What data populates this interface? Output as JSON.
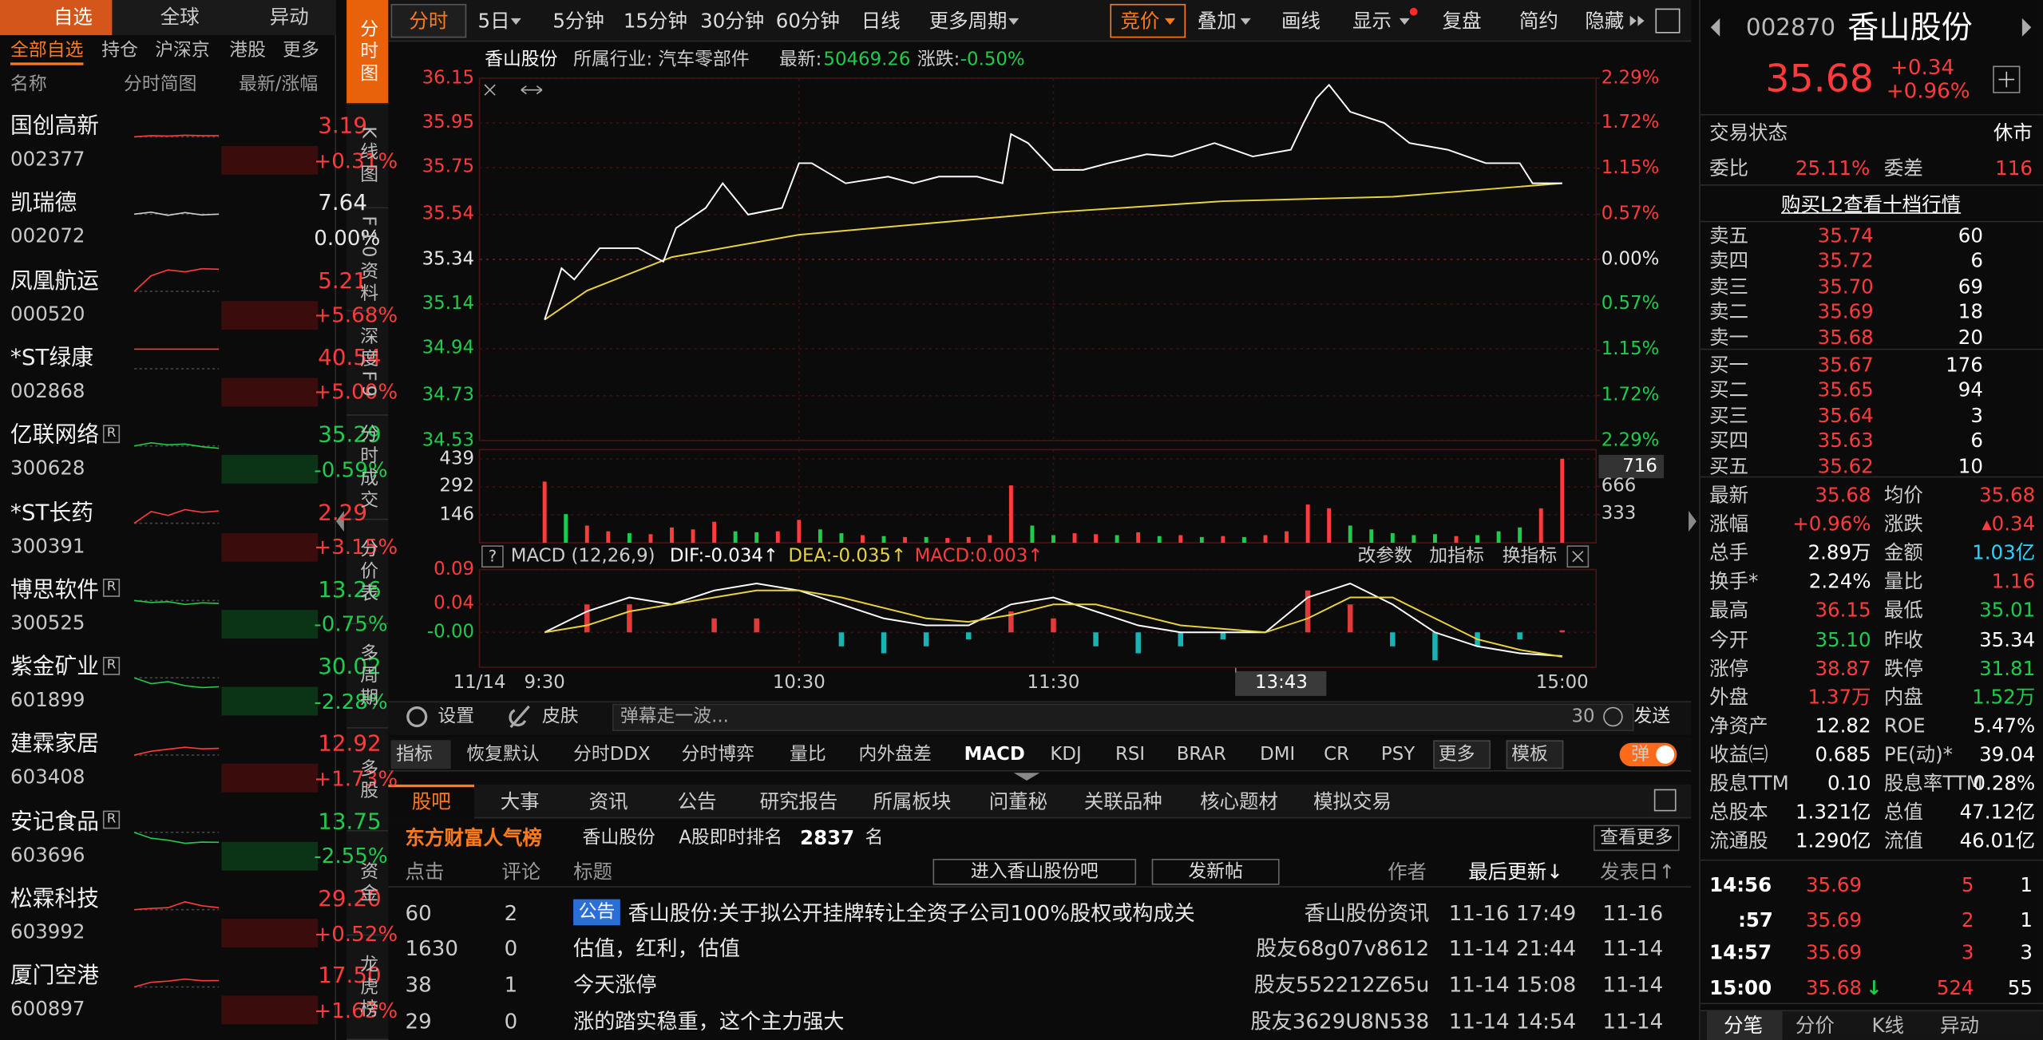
{
  "watchlist": {
    "tabs": [
      "自选",
      "全球",
      "异动"
    ],
    "subtabs": [
      "全部自选",
      "持仓",
      "沪深京",
      "港股",
      "更多"
    ],
    "columns": [
      "名称",
      "分时简图",
      "最新/涨幅"
    ],
    "stocks": [
      {
        "name": "国创高新",
        "code": "002377",
        "price": "3.19",
        "change": "+0.31%",
        "sparkline": [
          0,
          0.3,
          0.2,
          0.4,
          0.3,
          0.31
        ]
      },
      {
        "name": "凯瑞德",
        "code": "002072",
        "price": "7.64",
        "change": "0.00%",
        "sparkline": [
          0,
          0.5,
          -0.3,
          0.4,
          -0.2,
          0
        ]
      },
      {
        "name": "凤凰航运",
        "code": "000520",
        "price": "5.21",
        "change": "+5.68%",
        "sparkline": [
          0,
          4,
          5.5,
          5,
          5.8,
          5.68
        ]
      },
      {
        "name": "*ST绿康",
        "code": "002868",
        "price": "40.54",
        "change": "+5.00%",
        "sparkline": [
          5,
          5,
          5,
          5,
          5,
          5
        ]
      },
      {
        "name": "亿联网络",
        "badge": "R",
        "code": "300628",
        "price": "35.29",
        "change": "-0.59%",
        "sparkline": [
          0,
          0.8,
          0.3,
          0.5,
          -0.2,
          -0.59
        ]
      },
      {
        "name": "*ST长药",
        "code": "300391",
        "price": "2.29",
        "change": "+3.15%",
        "sparkline": [
          0,
          3,
          2,
          3.5,
          2.8,
          3.15
        ]
      },
      {
        "name": "博思软件",
        "badge": "R",
        "code": "300525",
        "price": "13.26",
        "change": "-0.75%",
        "sparkline": [
          0,
          -0.5,
          -0.3,
          -1,
          -0.6,
          -0.75
        ]
      },
      {
        "name": "紫金矿业",
        "badge": "R",
        "code": "601899",
        "price": "30.02",
        "change": "-2.28%",
        "sparkline": [
          0,
          -1.5,
          -1,
          -2,
          -2.5,
          -2.28
        ]
      },
      {
        "name": "建霖家居",
        "code": "603408",
        "price": "12.92",
        "change": "+1.73%",
        "sparkline": [
          0,
          1,
          1.5,
          2,
          1.6,
          1.73
        ]
      },
      {
        "name": "安记食品",
        "badge": "R",
        "code": "603696",
        "price": "13.75",
        "change": "-2.55%",
        "sparkline": [
          0,
          -1.5,
          -2,
          -2.8,
          -2.5,
          -2.55
        ]
      },
      {
        "name": "松霖科技",
        "code": "603992",
        "price": "29.20",
        "change": "+0.52%",
        "sparkline": [
          0,
          0.3,
          0.5,
          2,
          1,
          0.52
        ]
      },
      {
        "name": "厦门空港",
        "code": "600897",
        "price": "17.50",
        "change": "+1.63%",
        "sparkline": [
          0,
          1.2,
          1.5,
          2,
          1.6,
          1.63
        ]
      }
    ]
  },
  "side_tabs": [
    "分时图",
    "K线图",
    "F10资料",
    "深度F9",
    "分时成交",
    "分价表",
    "多周期",
    "多股",
    "资金",
    "龙虎榜"
  ],
  "toolbar": {
    "periods": [
      "分时",
      "5日",
      "5分钟",
      "15分钟",
      "30分钟",
      "60分钟",
      "日线",
      "更多周期"
    ],
    "tools": [
      "竞价",
      "叠加",
      "画线",
      "显示",
      "复盘",
      "简约",
      "隐藏"
    ]
  },
  "info": {
    "name": "香山股份",
    "industry": "所属行业: 汽车零部件",
    "latest_label": "最新:",
    "latest": "50469.26",
    "change_label": "涨跌:",
    "change": "-0.50%"
  },
  "chart_data": {
    "type": "line",
    "xlim": [
      0,
      240
    ],
    "xticks": [
      {
        "value": 0,
        "label": "9:30"
      },
      {
        "value": 60,
        "label": "10:30"
      },
      {
        "value": 120,
        "label": "11:30"
      },
      {
        "value": 240,
        "label": "15:00"
      }
    ],
    "date_label": "11/14",
    "cursor": {
      "value": 163,
      "label": "13:43"
    },
    "ylim": [
      34.53,
      36.15
    ],
    "yticks": [
      36.15,
      35.95,
      35.75,
      35.54,
      35.34,
      35.14,
      34.94,
      34.73,
      34.53
    ],
    "y2lim": [
      -2.29,
      2.29
    ],
    "y2ticks": [
      {
        "value": 2.29,
        "label": "2.29%"
      },
      {
        "value": 1.72,
        "label": "1.72%"
      },
      {
        "value": 1.15,
        "label": "1.15%"
      },
      {
        "value": 0.57,
        "label": "0.57%"
      },
      {
        "value": 0,
        "label": "0.00%"
      },
      {
        "value": -0.57,
        "label": "0.57%"
      },
      {
        "value": -1.15,
        "label": "1.15%"
      },
      {
        "value": -1.72,
        "label": "1.72%"
      },
      {
        "value": -2.29,
        "label": "2.29%"
      }
    ],
    "grid": true,
    "price": {
      "color": "#ffffff",
      "x": [
        0,
        4,
        7,
        13,
        22,
        28,
        31,
        38,
        42,
        48,
        56,
        60,
        63,
        71,
        81,
        87,
        93,
        102,
        108,
        110,
        114,
        120,
        127,
        133,
        142,
        148,
        158,
        167,
        176,
        179,
        182,
        185,
        190,
        198,
        204,
        213,
        222,
        230,
        233,
        240
      ],
      "values": [
        35.07,
        35.3,
        35.25,
        35.39,
        35.39,
        35.33,
        35.48,
        35.57,
        35.68,
        35.54,
        35.57,
        35.77,
        35.77,
        35.68,
        35.71,
        35.68,
        35.71,
        35.71,
        35.68,
        35.9,
        35.86,
        35.74,
        35.74,
        35.77,
        35.81,
        35.8,
        35.86,
        35.8,
        35.83,
        35.95,
        36.06,
        36.12,
        36.0,
        35.95,
        35.86,
        35.83,
        35.77,
        35.77,
        35.68,
        35.68
      ]
    },
    "average": {
      "color": "#e8d33a",
      "x": [
        0,
        10,
        30,
        60,
        90,
        120,
        160,
        200,
        240
      ],
      "values": [
        35.07,
        35.2,
        35.35,
        35.45,
        35.5,
        35.55,
        35.6,
        35.62,
        35.68
      ]
    },
    "volume": {
      "ylim": [
        0,
        487
      ],
      "yticks": [
        146,
        292,
        439
      ],
      "y2lim": [
        0,
        1100
      ],
      "y2ticks": [
        333,
        666
      ],
      "cursor_value": 716,
      "series": [
        {
          "color": "#ff3b3b",
          "x": [
            0,
            10,
            15,
            25,
            30,
            35,
            40,
            55,
            60,
            75,
            85,
            95,
            100,
            105,
            110,
            125,
            130,
            140,
            150,
            160,
            170,
            175,
            180,
            185,
            215,
            235,
            240
          ],
          "values": [
            320,
            90,
            60,
            45,
            80,
            70,
            110,
            60,
            120,
            40,
            30,
            25,
            30,
            40,
            300,
            50,
            45,
            55,
            40,
            35,
            40,
            60,
            200,
            180,
            35,
            180,
            439
          ]
        },
        {
          "color": "#1ecb4a",
          "x": [
            5,
            20,
            45,
            50,
            65,
            70,
            80,
            90,
            115,
            120,
            135,
            145,
            155,
            165,
            190,
            195,
            200,
            205,
            210,
            220,
            225,
            230
          ],
          "values": [
            150,
            50,
            60,
            55,
            70,
            50,
            35,
            30,
            90,
            40,
            40,
            35,
            30,
            30,
            90,
            70,
            50,
            40,
            45,
            40,
            60,
            80
          ]
        }
      ]
    },
    "macd": {
      "label": "MACD (12,26,9)",
      "dif_label": "DIF:-0.034↑",
      "dea_label": "DEA:-0.035↑",
      "macd_label": "MACD:0.003↑",
      "buttons": [
        "改参数",
        "加指标",
        "换指标"
      ],
      "ylim": [
        -0.05,
        0.09
      ],
      "yticks": [
        0.09,
        0.04,
        {
          "value": 0,
          "label": "-0.00"
        }
      ],
      "up_color": "#e03a3a",
      "down_color": "#19b3b3",
      "x": [
        0,
        10,
        20,
        30,
        40,
        50,
        60,
        70,
        80,
        90,
        100,
        110,
        120,
        130,
        140,
        150,
        160,
        170,
        180,
        190,
        200,
        210,
        220,
        230,
        240
      ],
      "dif": {
        "color": "#ffffff",
        "values": [
          0,
          0.03,
          0.05,
          0.04,
          0.06,
          0.07,
          0.06,
          0.04,
          0.02,
          0.01,
          0.01,
          0.04,
          0.05,
          0.03,
          0.01,
          0,
          0,
          0,
          0.05,
          0.07,
          0.04,
          0,
          -0.02,
          -0.03,
          -0.034
        ]
      },
      "dea": {
        "color": "#e8d33a",
        "values": [
          0,
          0.01,
          0.03,
          0.04,
          0.05,
          0.06,
          0.06,
          0.05,
          0.035,
          0.02,
          0.015,
          0.025,
          0.04,
          0.04,
          0.025,
          0.01,
          0.005,
          0,
          0.02,
          0.05,
          0.05,
          0.02,
          -0.01,
          -0.025,
          -0.035
        ]
      },
      "values": [
        0,
        0.04,
        0.04,
        0,
        0.02,
        0.02,
        0,
        -0.02,
        -0.03,
        -0.02,
        -0.01,
        0.03,
        0.02,
        -0.02,
        -0.03,
        -0.02,
        -0.01,
        0,
        0.06,
        0.04,
        -0.02,
        -0.04,
        -0.02,
        -0.01,
        0.003
      ]
    }
  },
  "bottom_bar": {
    "settings": "设置",
    "skin": "皮肤",
    "placeholder": "弹幕走一波...",
    "count": "30",
    "send": "发送"
  },
  "indicator_tabs": [
    "指标",
    "恢复默认",
    "分时DDX",
    "分时博弈",
    "量比",
    "内外盘差",
    "MACD",
    "KDJ",
    "RSI",
    "BRAR",
    "DMI",
    "CR",
    "PSY",
    "更多",
    "模板",
    "弹"
  ],
  "news_tabs": [
    "股吧",
    "大事",
    "资讯",
    "公告",
    "研究报告",
    "所属板块",
    "问董秘",
    "关联品种",
    "核心题材",
    "模拟交易"
  ],
  "rank": {
    "title": "东方财富人气榜",
    "stock": "香山股份",
    "label": "A股即时排名",
    "rank": "2837",
    "unit": "名",
    "more": "查看更多"
  },
  "posts": {
    "columns": [
      "点击",
      "评论",
      "标题",
      "进入香山股份吧",
      "发新帖",
      "作者",
      "最后更新↓",
      "发表日↑"
    ],
    "rows": [
      {
        "clicks": "60",
        "comments": "2",
        "tag": "公告",
        "title": "香山股份:关于拟公开挂牌转让全资子公司100%股权或构成关",
        "author": "香山股份资讯",
        "updated": "11-16 17:49",
        "date": "11-16"
      },
      {
        "clicks": "1630",
        "comments": "0",
        "title": "估值，红利，估值",
        "author": "股友68g07v8612",
        "updated": "11-14 21:44",
        "date": "11-14"
      },
      {
        "clicks": "38",
        "comments": "1",
        "title": "今天涨停",
        "author": "股友552212Z65u",
        "updated": "11-14 15:08",
        "date": "11-14"
      },
      {
        "clicks": "29",
        "comments": "0",
        "title": "涨的踏实稳重，这个主力强大",
        "author": "股友3629U8N538",
        "updated": "11-14 14:54",
        "date": "11-14"
      }
    ]
  },
  "quote": {
    "code": "002870",
    "name": "香山股份",
    "price": "35.68",
    "change": "+0.34",
    "pct": "+0.96%",
    "status_label": "交易状态",
    "status": "休市",
    "weibi_label": "委比",
    "weibi": "25.11%",
    "weicha_label": "委差",
    "weicha": "116",
    "l2": "购买L2查看十档行情",
    "orderbook": [
      {
        "label": "卖五",
        "price": "35.74",
        "volume": "60"
      },
      {
        "label": "卖四",
        "price": "35.72",
        "volume": "6"
      },
      {
        "label": "卖三",
        "price": "35.70",
        "volume": "69"
      },
      {
        "label": "卖二",
        "price": "35.69",
        "volume": "18"
      },
      {
        "label": "卖一",
        "price": "35.68",
        "volume": "20"
      },
      {
        "label": "买一",
        "price": "35.67",
        "volume": "176"
      },
      {
        "label": "买二",
        "price": "35.65",
        "volume": "94"
      },
      {
        "label": "买三",
        "price": "35.64",
        "volume": "3"
      },
      {
        "label": "买四",
        "price": "35.63",
        "volume": "6"
      },
      {
        "label": "买五",
        "price": "35.62",
        "volume": "10"
      }
    ],
    "stats": [
      {
        "label": "最新",
        "value": "35.68",
        "color": "#ff3b3b"
      },
      {
        "label": "均价",
        "value": "35.68",
        "color": "#ff3b3b"
      },
      {
        "label": "涨幅",
        "value": "+0.96%",
        "color": "#ff3b3b"
      },
      {
        "label": "涨跌",
        "value": "▴0.34",
        "color": "#ff3b3b"
      },
      {
        "label": "总手",
        "value": "2.89万",
        "color": "#ffffff"
      },
      {
        "label": "金额",
        "value": "1.03亿",
        "color": "#2ad4ff"
      },
      {
        "label": "换手*",
        "value": "2.24%",
        "color": "#ffffff"
      },
      {
        "label": "量比",
        "value": "1.16",
        "color": "#ff3b3b"
      },
      {
        "label": "最高",
        "value": "36.15",
        "color": "#ff3b3b"
      },
      {
        "label": "最低",
        "value": "35.01",
        "color": "#1ecb4a"
      },
      {
        "label": "今开",
        "value": "35.10",
        "color": "#1ecb4a"
      },
      {
        "label": "昨收",
        "value": "35.34",
        "color": "#ffffff"
      },
      {
        "label": "涨停",
        "value": "38.87",
        "color": "#ff3b3b"
      },
      {
        "label": "跌停",
        "value": "31.81",
        "color": "#1ecb4a"
      },
      {
        "label": "外盘",
        "value": "1.37万",
        "color": "#ff3b3b"
      },
      {
        "label": "内盘",
        "value": "1.52万",
        "color": "#1ecb4a"
      },
      {
        "label": "净资产",
        "value": "12.82",
        "color": "#ffffff"
      },
      {
        "label": "ROE",
        "value": "5.47%",
        "color": "#ffffff"
      },
      {
        "label": "收益㈢",
        "value": "0.685",
        "color": "#ffffff"
      },
      {
        "label": "PE(动)*",
        "value": "39.04",
        "color": "#ffffff"
      },
      {
        "label": "股息TTM",
        "value": "0.10",
        "color": "#ffffff"
      },
      {
        "label": "股息率TTM",
        "value": "0.28%",
        "color": "#ffffff"
      },
      {
        "label": "总股本",
        "value": "1.321亿",
        "color": "#ffffff"
      },
      {
        "label": "总值",
        "value": "47.12亿",
        "color": "#ffffff"
      },
      {
        "label": "流通股",
        "value": "1.290亿",
        "color": "#ffffff"
      },
      {
        "label": "流值",
        "value": "46.01亿",
        "color": "#ffffff"
      }
    ],
    "trades": [
      {
        "time": "14:56",
        "price": "35.69",
        "volume": "5",
        "count": "1"
      },
      {
        "time": ":57",
        "price": "35.69",
        "volume": "2",
        "count": "1"
      },
      {
        "time": "14:57",
        "price": "35.69",
        "volume": "3",
        "count": "3"
      },
      {
        "time": "15:00",
        "price": "35.68",
        "arrow": "↓",
        "volume": "524",
        "count": "55"
      }
    ],
    "tabs": [
      "分笔",
      "分价",
      "K线",
      "异动"
    ]
  }
}
